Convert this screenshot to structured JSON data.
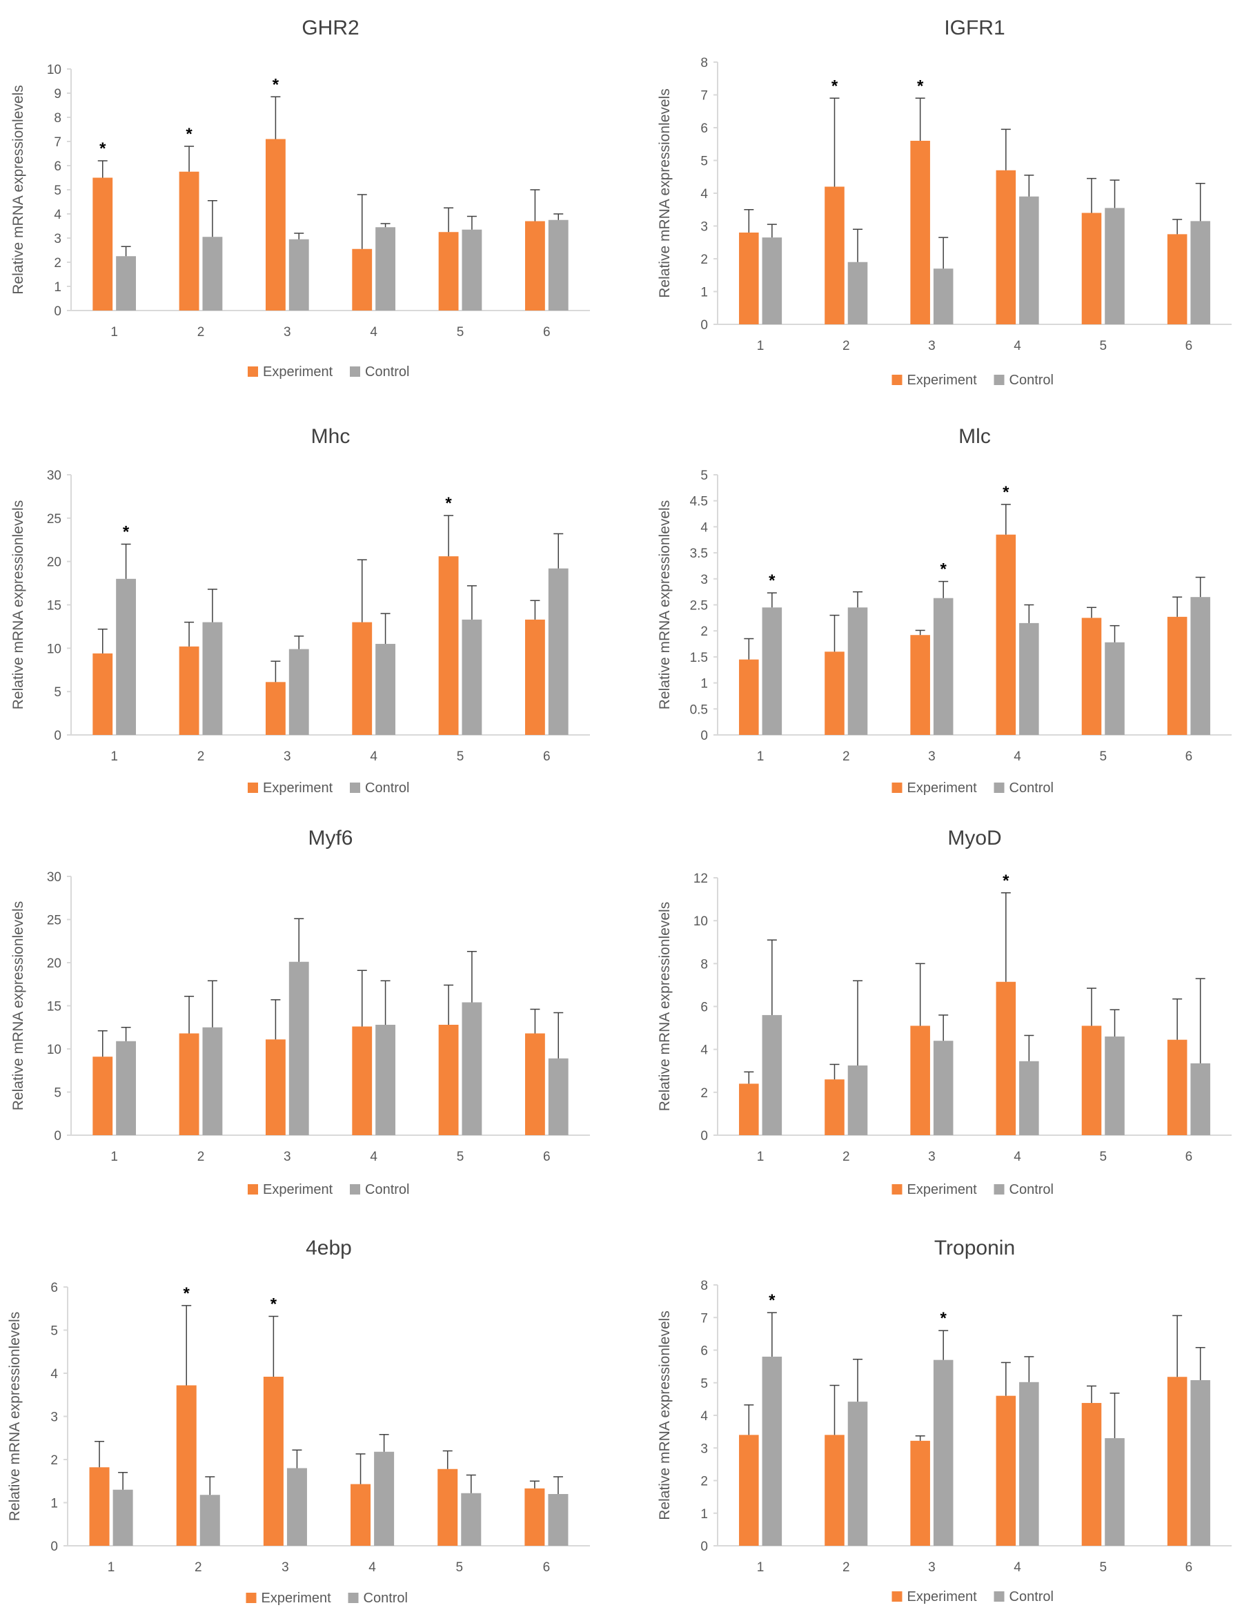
{
  "colors": {
    "experiment": "#F5843A",
    "control": "#A6A6A6",
    "axis": "#D9D9D9",
    "text": "#595959",
    "title": "#404040",
    "errorbar": "#404040"
  },
  "chart_data": [
    {
      "type": "bar",
      "title": "GHR2",
      "ylabel": "Relative mRNA  expressionlevels",
      "xlabel": "",
      "ylim": [
        0,
        10
      ],
      "yticks": [
        "0",
        "1",
        "2",
        "3",
        "4",
        "5",
        "6",
        "7",
        "8",
        "9",
        "10"
      ],
      "categories": [
        "1",
        "2",
        "3",
        "4",
        "5",
        "6"
      ],
      "series": [
        {
          "name": "Experiment",
          "values": [
            5.5,
            5.75,
            7.1,
            2.55,
            3.25,
            3.7
          ],
          "errors": [
            0.7,
            1.05,
            1.75,
            2.25,
            1.0,
            1.3
          ]
        },
        {
          "name": "Control",
          "values": [
            2.25,
            3.05,
            2.95,
            3.45,
            3.35,
            3.75
          ],
          "errors": [
            0.4,
            1.5,
            0.25,
            0.15,
            0.55,
            0.25
          ]
        }
      ],
      "significance": [
        "*",
        "*",
        "*",
        "",
        "",
        ""
      ],
      "legend": [
        "Experiment",
        "Control"
      ]
    },
    {
      "type": "bar",
      "title": "IGFR1",
      "ylabel": "Relative mRNA  expressionlevels",
      "xlabel": "",
      "ylim": [
        0,
        8
      ],
      "yticks": [
        "0",
        "1",
        "2",
        "3",
        "4",
        "5",
        "6",
        "7",
        "8"
      ],
      "categories": [
        "1",
        "2",
        "3",
        "4",
        "5",
        "6"
      ],
      "series": [
        {
          "name": "Experiment",
          "values": [
            2.8,
            4.2,
            5.6,
            4.7,
            3.4,
            2.75
          ],
          "errors": [
            0.7,
            2.7,
            1.3,
            1.25,
            1.05,
            0.45
          ]
        },
        {
          "name": "Control",
          "values": [
            2.65,
            1.9,
            1.7,
            3.9,
            3.55,
            3.15
          ],
          "errors": [
            0.4,
            1.0,
            0.95,
            0.65,
            0.85,
            1.15
          ]
        }
      ],
      "significance": [
        "",
        "*",
        "*",
        "",
        "",
        ""
      ],
      "legend": [
        "Experiment",
        "Control"
      ]
    },
    {
      "type": "bar",
      "title": "Mhc",
      "ylabel": "Relative mRNA  expressionlevels",
      "xlabel": "",
      "ylim": [
        0,
        30
      ],
      "yticks": [
        "0",
        "5",
        "10",
        "15",
        "20",
        "25",
        "30"
      ],
      "categories": [
        "1",
        "2",
        "3",
        "4",
        "5",
        "6"
      ],
      "series": [
        {
          "name": "Experiment",
          "values": [
            9.4,
            10.2,
            6.1,
            13.0,
            20.6,
            13.3
          ],
          "errors": [
            2.8,
            2.8,
            2.4,
            7.2,
            4.7,
            2.2
          ]
        },
        {
          "name": "Control",
          "values": [
            18.0,
            13.0,
            9.9,
            10.5,
            13.3,
            19.2
          ],
          "errors": [
            4.0,
            3.8,
            1.5,
            3.5,
            3.9,
            4.0
          ]
        }
      ],
      "significance": [
        "*",
        "",
        "",
        "",
        "*",
        ""
      ],
      "legend": [
        "Experiment",
        "Control"
      ]
    },
    {
      "type": "bar",
      "title": "Mlc",
      "ylabel": "Relative mRNA  expressionlevels",
      "xlabel": "",
      "ylim": [
        0,
        5
      ],
      "yticks": [
        "0",
        "0.5",
        "1",
        "1.5",
        "2",
        "2.5",
        "3",
        "3.5",
        "4",
        "4.5",
        "5"
      ],
      "categories": [
        "1",
        "2",
        "3",
        "4",
        "5",
        "6"
      ],
      "series": [
        {
          "name": "Experiment",
          "values": [
            1.45,
            1.6,
            1.92,
            3.85,
            2.25,
            2.27
          ],
          "errors": [
            0.4,
            0.7,
            0.09,
            0.58,
            0.2,
            0.38
          ]
        },
        {
          "name": "Control",
          "values": [
            2.45,
            2.45,
            2.63,
            2.15,
            1.78,
            2.65
          ],
          "errors": [
            0.28,
            0.3,
            0.32,
            0.35,
            0.32,
            0.38
          ]
        }
      ],
      "significance": [
        "*",
        "",
        "*",
        "*",
        "",
        ""
      ],
      "legend": [
        "Experiment",
        "Control"
      ]
    },
    {
      "type": "bar",
      "title": "Myf6",
      "ylabel": "Relative mRNA  expressionlevels",
      "xlabel": "",
      "ylim": [
        0,
        30
      ],
      "yticks": [
        "0",
        "5",
        "10",
        "15",
        "20",
        "25",
        "30"
      ],
      "categories": [
        "1",
        "2",
        "3",
        "4",
        "5",
        "6"
      ],
      "series": [
        {
          "name": "Experiment",
          "values": [
            9.1,
            11.8,
            11.1,
            12.6,
            12.8,
            11.8
          ],
          "errors": [
            3.0,
            4.3,
            4.6,
            6.5,
            4.6,
            2.8
          ]
        },
        {
          "name": "Control",
          "values": [
            10.9,
            12.5,
            20.1,
            12.8,
            15.4,
            8.9
          ],
          "errors": [
            1.6,
            5.4,
            5.0,
            5.1,
            5.9,
            5.3
          ]
        }
      ],
      "significance": [
        "",
        "",
        "",
        "",
        "",
        ""
      ],
      "legend": [
        "Experiment",
        "Control"
      ]
    },
    {
      "type": "bar",
      "title": "MyoD",
      "ylabel": "Relative mRNA  expressionlevels",
      "xlabel": "",
      "ylim": [
        0,
        12
      ],
      "yticks": [
        "0",
        "2",
        "4",
        "6",
        "8",
        "10",
        "12"
      ],
      "categories": [
        "1",
        "2",
        "3",
        "4",
        "5",
        "6"
      ],
      "series": [
        {
          "name": "Experiment",
          "values": [
            2.4,
            2.6,
            5.1,
            7.15,
            5.1,
            4.45
          ],
          "errors": [
            0.55,
            0.7,
            2.9,
            4.15,
            1.75,
            1.9
          ]
        },
        {
          "name": "Control",
          "values": [
            5.6,
            3.25,
            4.4,
            3.45,
            4.6,
            3.35
          ],
          "errors": [
            3.5,
            3.95,
            1.2,
            1.2,
            1.25,
            3.95
          ]
        }
      ],
      "significance": [
        "",
        "",
        "",
        "*",
        "",
        ""
      ],
      "legend": [
        "Experiment",
        "Control"
      ]
    },
    {
      "type": "bar",
      "title": "4ebp",
      "ylabel": "Relative mRNA  expressionlevels",
      "xlabel": "",
      "ylim": [
        0,
        6
      ],
      "yticks": [
        "0",
        "1",
        "2",
        "3",
        "4",
        "5",
        "6"
      ],
      "categories": [
        "1",
        "2",
        "3",
        "4",
        "5",
        "6"
      ],
      "series": [
        {
          "name": "Experiment",
          "values": [
            1.82,
            3.72,
            3.92,
            1.43,
            1.78,
            1.33
          ],
          "errors": [
            0.6,
            1.85,
            1.4,
            0.7,
            0.42,
            0.17
          ]
        },
        {
          "name": "Control",
          "values": [
            1.3,
            1.18,
            1.8,
            2.18,
            1.22,
            1.2
          ],
          "errors": [
            0.4,
            0.42,
            0.42,
            0.4,
            0.42,
            0.4
          ]
        }
      ],
      "significance": [
        "",
        "*",
        "*",
        "",
        "",
        ""
      ],
      "legend": [
        "Experiment",
        "Control"
      ]
    },
    {
      "type": "bar",
      "title": "Troponin",
      "ylabel": "Relative mRNA  expressionlevels",
      "xlabel": "",
      "ylim": [
        0,
        8
      ],
      "yticks": [
        "0",
        "1",
        "2",
        "3",
        "4",
        "5",
        "6",
        "7",
        "8"
      ],
      "categories": [
        "1",
        "2",
        "3",
        "4",
        "5",
        "6"
      ],
      "series": [
        {
          "name": "Experiment",
          "values": [
            3.4,
            3.4,
            3.22,
            4.6,
            4.38,
            5.18
          ],
          "errors": [
            0.92,
            1.52,
            0.15,
            1.02,
            0.52,
            1.88
          ]
        },
        {
          "name": "Control",
          "values": [
            5.8,
            4.42,
            5.7,
            5.02,
            3.3,
            5.08
          ],
          "errors": [
            1.35,
            1.3,
            0.9,
            0.78,
            1.38,
            1.0
          ]
        }
      ],
      "significance": [
        "*",
        "",
        "*",
        "",
        "",
        ""
      ],
      "legend": [
        "Experiment",
        "Control"
      ]
    }
  ]
}
